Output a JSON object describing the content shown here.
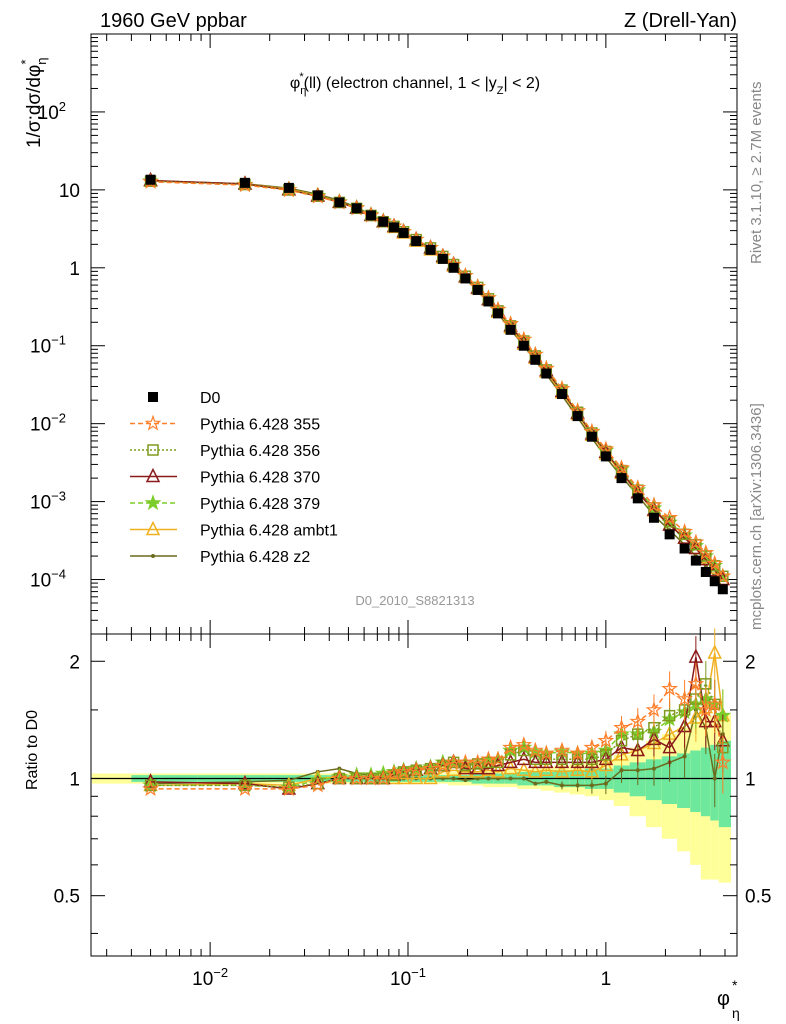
{
  "header": {
    "left": "1960 GeV ppbar",
    "right": "Z (Drell-Yan)"
  },
  "side_labels": {
    "rivet": "Rivet 3.1.10, ≥ 2.7M events",
    "mcplots": "mcplots.cern.ch [arXiv:1306.3436]"
  },
  "analysis_id": "D0_2010_S8821313",
  "colors": {
    "D0": "#000000",
    "p355": "#ff7f2a",
    "p356": "#7f9a1e",
    "p370": "#8b1a1a",
    "p379": "#7ccd2a",
    "ambt1": "#f0b020",
    "z2": "#6b6b1e",
    "band_inner": "#6ee89c",
    "band_outer": "#ffff99"
  },
  "chart_data": [
    {
      "type": "line",
      "panel": "main",
      "title": "φ*η(ll) (electron channel, 1 < |yZ| < 2)",
      "ylabel": "1/σ;dσ/dφ*η",
      "yscale": "log",
      "xscale": "log",
      "ylim": [
        2e-05,
        1000
      ],
      "xlim": [
        0.0025,
        4.6
      ],
      "y_ticks": [
        "10^-4",
        "10^-3",
        "10^-2",
        "10^-1",
        "1",
        "10",
        "10^2"
      ],
      "x": [
        0.005,
        0.015,
        0.025,
        0.035,
        0.045,
        0.055,
        0.065,
        0.075,
        0.085,
        0.095,
        0.11,
        0.13,
        0.15,
        0.17,
        0.195,
        0.225,
        0.255,
        0.285,
        0.33,
        0.385,
        0.44,
        0.5,
        0.6,
        0.72,
        0.85,
        1.0,
        1.2,
        1.45,
        1.75,
        2.1,
        2.5,
        2.85,
        3.2,
        3.55,
        3.9
      ],
      "series": [
        {
          "name": "D0",
          "values": [
            13.5,
            12.3,
            10.6,
            8.5,
            6.9,
            5.8,
            4.7,
            3.9,
            3.3,
            2.8,
            2.2,
            1.7,
            1.3,
            1.0,
            0.73,
            0.52,
            0.37,
            0.26,
            0.16,
            0.1,
            0.066,
            0.044,
            0.024,
            0.0125,
            0.0068,
            0.0038,
            0.002,
            0.0011,
            0.00062,
            0.00038,
            0.00025,
            0.000175,
            0.000125,
            9.5e-05,
            7.5e-05
          ]
        },
        {
          "name": "Pythia 6.428 355",
          "values": [
            12.7,
            11.5,
            9.9,
            8.2,
            6.9,
            5.8,
            4.7,
            3.9,
            3.4,
            2.9,
            2.3,
            1.8,
            1.4,
            1.1,
            0.79,
            0.57,
            0.41,
            0.29,
            0.19,
            0.12,
            0.077,
            0.051,
            0.028,
            0.0145,
            0.0079,
            0.0047,
            0.0027,
            0.0015,
            0.0009,
            0.00062,
            0.00041,
            0.0003,
            0.00022,
            0.00016,
            0.00011
          ]
        },
        {
          "name": "Pythia 6.428 356",
          "values": [
            12.9,
            11.7,
            10.0,
            8.3,
            6.9,
            5.8,
            4.7,
            3.9,
            3.4,
            2.9,
            2.3,
            1.8,
            1.4,
            1.1,
            0.78,
            0.56,
            0.4,
            0.28,
            0.18,
            0.115,
            0.074,
            0.049,
            0.027,
            0.014,
            0.0076,
            0.0044,
            0.0025,
            0.0014,
            0.00083,
            0.00055,
            0.00038,
            0.00028,
            0.0002,
            0.00015,
            0.00011
          ]
        },
        {
          "name": "Pythia 6.428 370",
          "values": [
            13.2,
            11.9,
            10.0,
            8.3,
            6.9,
            5.8,
            4.7,
            3.9,
            3.4,
            2.9,
            2.3,
            1.8,
            1.4,
            1.1,
            0.77,
            0.55,
            0.39,
            0.28,
            0.18,
            0.11,
            0.072,
            0.048,
            0.026,
            0.0137,
            0.0074,
            0.0043,
            0.0024,
            0.0013,
            0.00078,
            0.0005,
            0.00034,
            0.00025,
            0.00018,
            0.00013,
            0.0001
          ]
        },
        {
          "name": "Pythia 6.428 379",
          "values": [
            12.9,
            11.7,
            10.0,
            8.4,
            7.0,
            5.9,
            4.8,
            4.0,
            3.4,
            2.9,
            2.3,
            1.8,
            1.4,
            1.1,
            0.79,
            0.57,
            0.41,
            0.29,
            0.19,
            0.12,
            0.077,
            0.051,
            0.028,
            0.0145,
            0.0078,
            0.0045,
            0.0026,
            0.0014,
            0.00082,
            0.00054,
            0.00037,
            0.00027,
            0.0002,
            0.00015,
            0.00011
          ]
        },
        {
          "name": "Pythia 6.428 ambt1",
          "values": [
            13.0,
            11.9,
            10.2,
            8.5,
            7.0,
            5.8,
            4.7,
            3.9,
            3.3,
            2.8,
            2.2,
            1.7,
            1.35,
            1.05,
            0.76,
            0.54,
            0.39,
            0.27,
            0.17,
            0.105,
            0.069,
            0.046,
            0.025,
            0.0131,
            0.0071,
            0.0041,
            0.0023,
            0.0013,
            0.00076,
            0.0005,
            0.00034,
            0.00025,
            0.00019,
            0.00014,
            0.0001
          ]
        },
        {
          "name": "Pythia 6.428 z2",
          "values": [
            13.1,
            12.0,
            10.5,
            8.8,
            7.3,
            6.0,
            4.8,
            3.9,
            3.3,
            2.8,
            2.2,
            1.7,
            1.3,
            1.0,
            0.72,
            0.52,
            0.37,
            0.26,
            0.16,
            0.1,
            0.064,
            0.043,
            0.023,
            0.012,
            0.0065,
            0.0037,
            0.0021,
            0.0012,
            0.00066,
            0.00043,
            0.00028,
            0.0002,
            0.00015,
            0.00011,
            8e-05
          ]
        }
      ]
    },
    {
      "type": "line",
      "panel": "ratio",
      "ylabel": "Ratio to D0",
      "xlabel": "φ*η",
      "ylim": [
        0.35,
        2.35
      ],
      "y_ticks": [
        0.5,
        1,
        2
      ],
      "x_ticks": [
        "10^-2",
        "10^-1",
        "1"
      ],
      "band_inner": [
        0.02,
        0.02,
        0.02,
        0.02,
        0.02,
        0.02,
        0.02,
        0.02,
        0.02,
        0.02,
        0.02,
        0.02,
        0.02,
        0.02,
        0.02,
        0.03,
        0.03,
        0.03,
        0.03,
        0.04,
        0.04,
        0.04,
        0.05,
        0.05,
        0.06,
        0.06,
        0.08,
        0.1,
        0.12,
        0.14,
        0.16,
        0.18,
        0.2,
        0.22,
        0.25
      ],
      "band_outer": [
        0.03,
        0.03,
        0.03,
        0.03,
        0.03,
        0.03,
        0.03,
        0.03,
        0.03,
        0.03,
        0.03,
        0.03,
        0.03,
        0.04,
        0.04,
        0.04,
        0.05,
        0.05,
        0.05,
        0.06,
        0.06,
        0.07,
        0.08,
        0.09,
        0.1,
        0.12,
        0.15,
        0.2,
        0.25,
        0.3,
        0.35,
        0.4,
        0.45,
        0.45,
        0.46
      ],
      "series": [
        {
          "name": "Pythia 6.428 355",
          "values": [
            0.94,
            0.94,
            0.94,
            0.96,
            1.0,
            1.0,
            1.0,
            1.0,
            1.03,
            1.04,
            1.05,
            1.06,
            1.08,
            1.1,
            1.1,
            1.1,
            1.12,
            1.12,
            1.2,
            1.22,
            1.18,
            1.16,
            1.18,
            1.16,
            1.2,
            1.25,
            1.35,
            1.4,
            1.5,
            1.7,
            1.6,
            1.75,
            1.5,
            1.55,
            1.1
          ]
        },
        {
          "name": "Pythia 6.428 356",
          "values": [
            0.96,
            0.96,
            0.95,
            0.97,
            1.0,
            1.0,
            1.0,
            1.0,
            1.02,
            1.04,
            1.05,
            1.06,
            1.08,
            1.1,
            1.08,
            1.09,
            1.1,
            1.1,
            1.15,
            1.18,
            1.12,
            1.12,
            1.12,
            1.12,
            1.12,
            1.15,
            1.25,
            1.3,
            1.35,
            1.45,
            1.5,
            1.6,
            1.75,
            1.55,
            1.2
          ]
        },
        {
          "name": "Pythia 6.428 370",
          "values": [
            0.98,
            0.97,
            0.94,
            0.97,
            1.0,
            1.0,
            1.0,
            1.0,
            1.02,
            1.04,
            1.05,
            1.06,
            1.08,
            1.1,
            1.06,
            1.06,
            1.06,
            1.08,
            1.1,
            1.12,
            1.1,
            1.1,
            1.1,
            1.1,
            1.1,
            1.12,
            1.2,
            1.18,
            1.26,
            1.2,
            1.36,
            2.05,
            1.4,
            1.4,
            1.25
          ]
        },
        {
          "name": "Pythia 6.428 379",
          "values": [
            0.96,
            0.96,
            0.95,
            0.99,
            1.01,
            1.02,
            1.02,
            1.03,
            1.04,
            1.05,
            1.06,
            1.07,
            1.1,
            1.1,
            1.08,
            1.09,
            1.11,
            1.12,
            1.18,
            1.2,
            1.17,
            1.16,
            1.17,
            1.16,
            1.16,
            1.18,
            1.3,
            1.3,
            1.32,
            1.42,
            1.48,
            1.55,
            1.6,
            1.55,
            1.45
          ]
        },
        {
          "name": "Pythia 6.428 ambt1",
          "values": [
            0.96,
            0.97,
            0.96,
            1.0,
            1.01,
            1.0,
            1.0,
            1.0,
            1.0,
            1.0,
            1.0,
            1.0,
            1.04,
            1.05,
            1.04,
            1.04,
            1.05,
            1.04,
            1.06,
            1.05,
            1.04,
            1.05,
            1.04,
            1.05,
            1.04,
            1.08,
            1.15,
            1.18,
            1.23,
            1.3,
            1.36,
            1.43,
            1.52,
            2.1,
            1.45
          ]
        },
        {
          "name": "Pythia 6.428 z2",
          "values": [
            0.97,
            0.98,
            0.99,
            1.04,
            1.06,
            1.03,
            1.02,
            1.0,
            1.0,
            1.0,
            1.0,
            1.0,
            1.0,
            1.0,
            0.99,
            1.0,
            1.0,
            1.0,
            1.0,
            1.0,
            0.97,
            0.98,
            0.96,
            0.96,
            0.96,
            0.97,
            1.05,
            1.05,
            1.06,
            1.1,
            1.14,
            1.5,
            1.35,
            1.0,
            1.3
          ]
        }
      ]
    }
  ]
}
